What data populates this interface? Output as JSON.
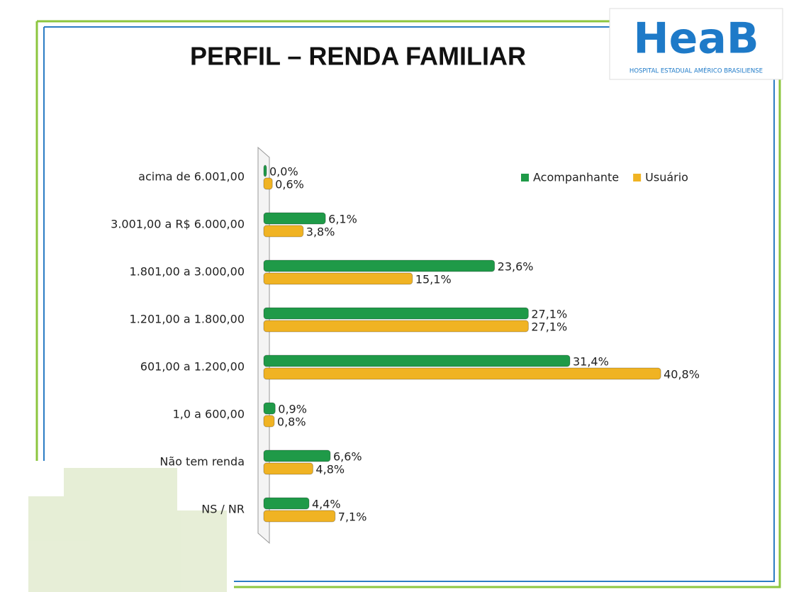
{
  "chart_data": {
    "type": "barh",
    "title": "PERFIL – RENDA FAMILIAR",
    "categories": [
      "acima de 6.001,00",
      "3.001,00 a R$ 6.000,00",
      "1.801,00 a 3.000,00",
      "1.201,00 a 1.800,00",
      "601,00 a 1.200,00",
      "1,0 a 600,00",
      "Não tem renda",
      "NS / NR"
    ],
    "series": [
      {
        "name": "Acompanhante",
        "color": "#1f9a48",
        "values": [
          0.0,
          6.1,
          23.6,
          27.1,
          31.4,
          0.9,
          6.6,
          4.4
        ],
        "value_labels": [
          "0,0%",
          "6,1%",
          "23,6%",
          "27,1%",
          "31,4%",
          "0,9%",
          "6,6%",
          "4,4%"
        ]
      },
      {
        "name": "Usuário",
        "color": "#f0b323",
        "values": [
          0.6,
          3.8,
          15.1,
          27.1,
          40.8,
          0.8,
          4.8,
          7.1
        ],
        "value_labels": [
          "0,6%",
          "3,8%",
          "15,1%",
          "27,1%",
          "40,8%",
          "0,8%",
          "4,8%",
          "7,1%"
        ]
      }
    ],
    "legend": "top-right"
  },
  "logo": {
    "text": "HeaB",
    "subtitle": "HOSPITAL ESTADUAL AMÉRICO BRASILIENSE"
  }
}
